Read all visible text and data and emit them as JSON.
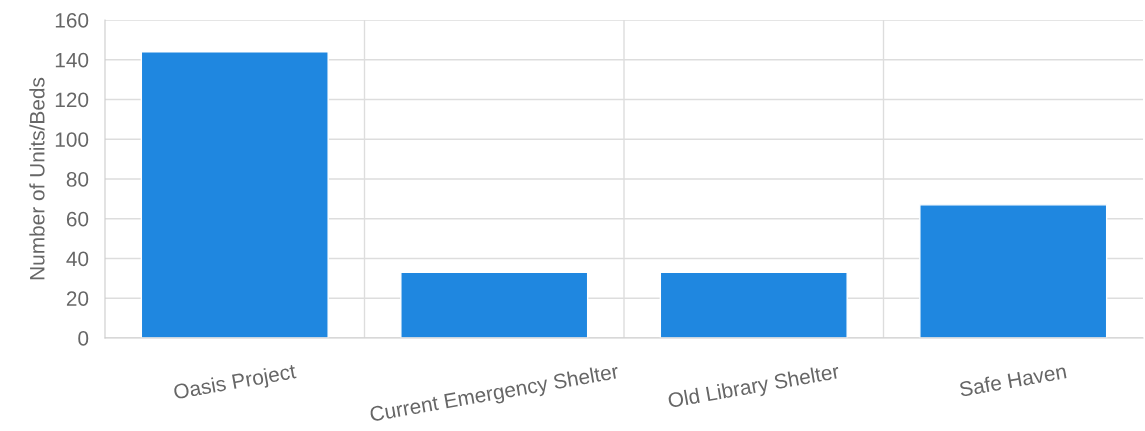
{
  "chart_data": {
    "type": "bar",
    "ylabel": "Number of Units/Beds",
    "categories": [
      "Oasis Project",
      "Current Emergency Shelter",
      "Old Library Shelter",
      "Safe Haven"
    ],
    "values": [
      144,
      33,
      33,
      67
    ],
    "color": "#1f87e0",
    "ylim": [
      0,
      160
    ],
    "yticks": [
      0,
      20,
      40,
      60,
      80,
      100,
      120,
      140,
      160
    ],
    "grid": true
  }
}
